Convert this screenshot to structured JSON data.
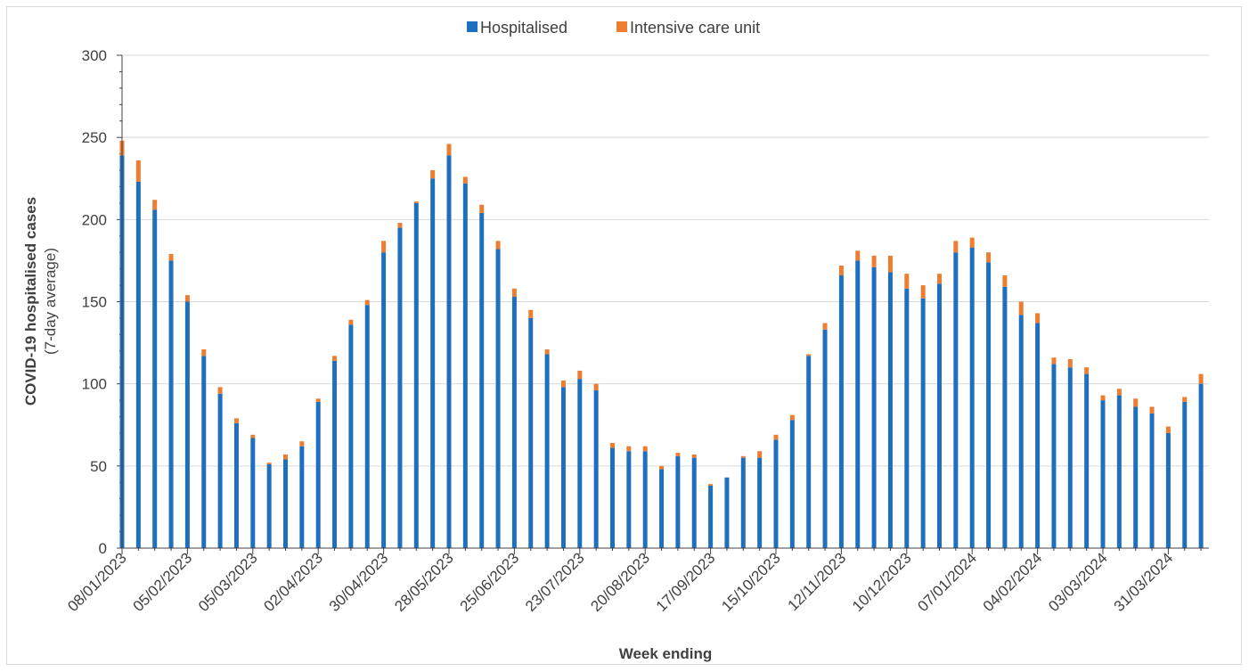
{
  "chart_data": {
    "type": "bar",
    "stacked": true,
    "xlabel": "Week ending",
    "ylabel": "COVID-19 hospitalised cases",
    "ylabel_sub": "(7-day average)",
    "ylim": [
      0,
      300
    ],
    "yticks": [
      0,
      50,
      100,
      150,
      200,
      250,
      300
    ],
    "grid": true,
    "legend_position": "top-center",
    "x_tick_labels": [
      "08/01/2023",
      "05/02/2023",
      "05/03/2023",
      "02/04/2023",
      "30/04/2023",
      "28/05/2023",
      "25/06/2023",
      "23/07/2023",
      "20/08/2023",
      "17/09/2023",
      "15/10/2023",
      "12/11/2023",
      "10/12/2023",
      "07/01/2024",
      "04/02/2024",
      "03/03/2024",
      "31/03/2024"
    ],
    "categories": [
      "08/01/2023",
      "15/01/2023",
      "22/01/2023",
      "29/01/2023",
      "05/02/2023",
      "12/02/2023",
      "19/02/2023",
      "26/02/2023",
      "05/03/2023",
      "12/03/2023",
      "19/03/2023",
      "26/03/2023",
      "02/04/2023",
      "09/04/2023",
      "16/04/2023",
      "23/04/2023",
      "30/04/2023",
      "07/05/2023",
      "14/05/2023",
      "21/05/2023",
      "28/05/2023",
      "04/06/2023",
      "11/06/2023",
      "18/06/2023",
      "25/06/2023",
      "02/07/2023",
      "09/07/2023",
      "16/07/2023",
      "23/07/2023",
      "30/07/2023",
      "06/08/2023",
      "13/08/2023",
      "20/08/2023",
      "27/08/2023",
      "03/09/2023",
      "10/09/2023",
      "17/09/2023",
      "24/09/2023",
      "01/10/2023",
      "08/10/2023",
      "15/10/2023",
      "22/10/2023",
      "29/10/2023",
      "05/11/2023",
      "12/11/2023",
      "19/11/2023",
      "26/11/2023",
      "03/12/2023",
      "10/12/2023",
      "17/12/2023",
      "24/12/2023",
      "31/12/2023",
      "07/01/2024",
      "14/01/2024",
      "21/01/2024",
      "28/01/2024",
      "04/02/2024",
      "11/02/2024",
      "18/02/2024",
      "25/02/2024",
      "03/03/2024",
      "10/03/2024",
      "17/03/2024",
      "24/03/2024",
      "31/03/2024",
      "07/04/2024",
      "14/04/2024"
    ],
    "series": [
      {
        "name": "Hospitalised",
        "color": "#1f6fbf",
        "values": [
          239,
          223,
          206,
          175,
          150,
          117,
          94,
          76,
          67,
          51,
          54,
          62,
          89,
          114,
          136,
          148,
          180,
          195,
          210,
          225,
          239,
          222,
          204,
          182,
          153,
          140,
          118,
          98,
          103,
          96,
          61,
          59,
          59,
          48,
          56,
          55,
          38,
          43,
          55,
          55,
          66,
          78,
          117,
          133,
          166,
          175,
          171,
          168,
          158,
          152,
          161,
          180,
          183,
          174,
          159,
          142,
          137,
          112,
          110,
          106,
          90,
          93,
          86,
          82,
          70,
          89,
          100
        ]
      },
      {
        "name": "Intensive care unit",
        "color": "#ed7d31",
        "values": [
          9,
          13,
          6,
          4,
          4,
          4,
          4,
          3,
          2,
          1,
          3,
          3,
          2,
          3,
          3,
          3,
          7,
          3,
          1,
          5,
          7,
          4,
          5,
          5,
          5,
          5,
          3,
          4,
          5,
          4,
          3,
          3,
          3,
          2,
          2,
          2,
          1,
          0,
          1,
          4,
          3,
          3,
          1,
          4,
          6,
          6,
          7,
          10,
          9,
          8,
          6,
          7,
          6,
          6,
          7,
          8,
          6,
          4,
          5,
          4,
          3,
          4,
          5,
          4,
          4,
          3,
          6
        ]
      }
    ]
  }
}
